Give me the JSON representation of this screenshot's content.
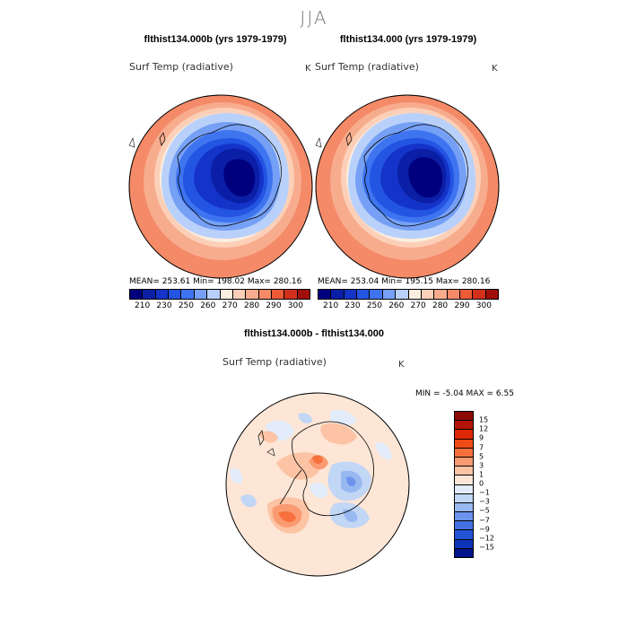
{
  "season": "JJA",
  "panels": [
    {
      "title": "flthist134.000b (yrs 1979-1979)",
      "variable": "Surf Temp (radiative)",
      "units": "K",
      "stats_text": "MEAN= 253.61   Min= 198.02   Max= 280.16"
    },
    {
      "title": "flthist134.000 (yrs 1979-1979)",
      "variable": "Surf Temp (radiative)",
      "units": "K",
      "stats_text": "MEAN= 253.04   Min= 195.15   Max= 280.16"
    }
  ],
  "temp_colorbar": {
    "ticks": [
      "210",
      "230",
      "250",
      "260",
      "270",
      "280",
      "290",
      "300"
    ],
    "colors": [
      "#00007f",
      "#0a1fa6",
      "#1433c8",
      "#2454e2",
      "#3f74f0",
      "#76a0f5",
      "#b9d1fa",
      "#fbeee0",
      "#fcd0b8",
      "#f8ac8e",
      "#f48a68",
      "#ec5a36",
      "#d2301c",
      "#a00f0a"
    ]
  },
  "diff_panel": {
    "title": "flthist134.000b - flthist134.000",
    "variable": "Surf Temp (radiative)",
    "units": "K",
    "minmax_text": "MIN =   -5.04  MAX =    6.55"
  },
  "diff_colorbar": {
    "labels": [
      "15",
      "12",
      "9",
      "7",
      "5",
      "3",
      "1",
      "0",
      "−1",
      "−3",
      "−5",
      "−7",
      "−9",
      "−12",
      "−15"
    ],
    "colors": [
      "#8c0a06",
      "#b41406",
      "#dc2806",
      "#f04a16",
      "#f7703d",
      "#fa9a70",
      "#fcc4a4",
      "#fde6d6",
      "#e2ecfa",
      "#c2d6f6",
      "#98b8f2",
      "#6c94ec",
      "#4472e4",
      "#2454d6",
      "#0c34b6",
      "#00148a"
    ]
  }
}
